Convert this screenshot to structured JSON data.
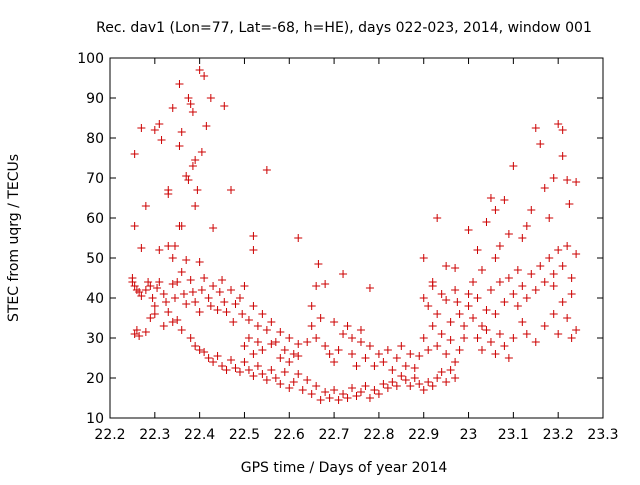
{
  "chart_data": {
    "type": "scatter",
    "title": "Rec. dav1 (Lon=77, Lat=-68, h=HE), days 022-023, 2014, window 001",
    "xlabel": "GPS time / Days of year 2014",
    "ylabel": "STEC from uqrg / TECUs",
    "xlim": [
      22.2,
      23.3
    ],
    "ylim": [
      10,
      100
    ],
    "x_ticks": [
      22.2,
      22.3,
      22.4,
      22.5,
      22.6,
      22.7,
      22.8,
      22.9,
      23,
      23.1,
      23.2,
      23.3
    ],
    "x_tick_labels": [
      "22.2",
      "22.3",
      "22.4",
      "22.5",
      "22.6",
      "22.7",
      "22.8",
      "22.9",
      "23",
      "23.1",
      "23.2",
      "23.3"
    ],
    "y_ticks": [
      10,
      20,
      30,
      40,
      50,
      60,
      70,
      80,
      90,
      100
    ],
    "y_tick_labels": [
      "10",
      "20",
      "30",
      "40",
      "50",
      "60",
      "70",
      "80",
      "90",
      "100"
    ],
    "grid": false,
    "marker": "plus",
    "color": "#cc0000",
    "series": [
      {
        "points": [
          [
            22.255,
            76
          ],
          [
            22.255,
            58
          ],
          [
            22.27,
            82.5
          ],
          [
            22.3,
            82
          ],
          [
            22.31,
            83.5
          ],
          [
            22.315,
            79.5
          ],
          [
            22.34,
            87.5
          ],
          [
            22.355,
            93.5
          ],
          [
            22.36,
            81.5
          ],
          [
            22.375,
            90
          ],
          [
            22.38,
            88.5
          ],
          [
            22.385,
            86.5
          ],
          [
            22.4,
            97
          ],
          [
            22.41,
            95.5
          ],
          [
            22.405,
            76.5
          ],
          [
            22.415,
            83
          ],
          [
            22.425,
            90
          ],
          [
            22.455,
            88
          ],
          [
            22.355,
            78
          ],
          [
            22.37,
            70.5
          ],
          [
            22.375,
            69.5
          ],
          [
            22.385,
            73
          ],
          [
            22.39,
            74.5
          ],
          [
            22.395,
            67
          ],
          [
            22.39,
            63
          ],
          [
            22.33,
            67
          ],
          [
            22.33,
            66
          ],
          [
            22.355,
            58
          ],
          [
            22.36,
            58
          ],
          [
            22.345,
            53
          ],
          [
            22.28,
            63
          ],
          [
            22.27,
            52.5
          ],
          [
            22.31,
            52
          ],
          [
            22.33,
            53
          ],
          [
            22.34,
            50
          ],
          [
            22.37,
            49.5
          ],
          [
            22.4,
            49
          ],
          [
            22.43,
            57.5
          ],
          [
            22.47,
            67
          ],
          [
            22.52,
            55.5
          ],
          [
            22.52,
            52
          ],
          [
            22.55,
            72
          ],
          [
            22.25,
            45
          ],
          [
            22.25,
            44
          ],
          [
            22.255,
            43
          ],
          [
            22.26,
            42
          ],
          [
            22.265,
            41.5
          ],
          [
            22.27,
            40.5
          ],
          [
            22.28,
            42
          ],
          [
            22.285,
            44
          ],
          [
            22.29,
            43
          ],
          [
            22.295,
            40
          ],
          [
            22.3,
            38
          ],
          [
            22.305,
            42.5
          ],
          [
            22.31,
            44
          ],
          [
            22.32,
            41
          ],
          [
            22.325,
            39
          ],
          [
            22.33,
            36.5
          ],
          [
            22.34,
            43.5
          ],
          [
            22.345,
            40
          ],
          [
            22.35,
            44
          ],
          [
            22.36,
            46.5
          ],
          [
            22.365,
            41
          ],
          [
            22.37,
            38.5
          ],
          [
            22.38,
            44.5
          ],
          [
            22.385,
            41.5
          ],
          [
            22.39,
            39
          ],
          [
            22.4,
            36.5
          ],
          [
            22.405,
            42
          ],
          [
            22.41,
            45
          ],
          [
            22.42,
            40
          ],
          [
            22.425,
            38
          ],
          [
            22.43,
            43
          ],
          [
            22.44,
            37
          ],
          [
            22.445,
            41.5
          ],
          [
            22.45,
            44.5
          ],
          [
            22.455,
            39
          ],
          [
            22.46,
            36.5
          ],
          [
            22.47,
            42
          ],
          [
            22.475,
            34
          ],
          [
            22.48,
            38.5
          ],
          [
            22.49,
            40
          ],
          [
            22.495,
            36
          ],
          [
            22.5,
            43
          ],
          [
            22.51,
            34.5
          ],
          [
            22.52,
            38
          ],
          [
            22.53,
            33
          ],
          [
            22.54,
            36
          ],
          [
            22.55,
            32
          ],
          [
            22.56,
            34
          ],
          [
            22.57,
            29
          ],
          [
            22.58,
            31.5
          ],
          [
            22.59,
            27
          ],
          [
            22.6,
            30
          ],
          [
            22.61,
            26
          ],
          [
            22.62,
            28.5
          ],
          [
            22.255,
            31
          ],
          [
            22.26,
            32
          ],
          [
            22.265,
            30.5
          ],
          [
            22.28,
            31.5
          ],
          [
            22.29,
            35
          ],
          [
            22.3,
            36
          ],
          [
            22.32,
            33
          ],
          [
            22.34,
            34
          ],
          [
            22.35,
            34.5
          ],
          [
            22.36,
            32
          ],
          [
            22.38,
            30
          ],
          [
            22.39,
            28
          ],
          [
            22.4,
            27
          ],
          [
            22.41,
            26.5
          ],
          [
            22.42,
            25
          ],
          [
            22.43,
            24
          ],
          [
            22.44,
            25.5
          ],
          [
            22.45,
            23
          ],
          [
            22.46,
            22
          ],
          [
            22.47,
            24.5
          ],
          [
            22.48,
            22.5
          ],
          [
            22.49,
            21.5
          ],
          [
            22.5,
            24
          ],
          [
            22.51,
            22
          ],
          [
            22.52,
            20.5
          ],
          [
            22.53,
            23
          ],
          [
            22.54,
            21
          ],
          [
            22.55,
            19.5
          ],
          [
            22.56,
            22
          ],
          [
            22.57,
            20
          ],
          [
            22.58,
            18.5
          ],
          [
            22.59,
            21.5
          ],
          [
            22.6,
            17.5
          ],
          [
            22.61,
            19
          ],
          [
            22.62,
            21
          ],
          [
            22.63,
            17
          ],
          [
            22.64,
            19.5
          ],
          [
            22.65,
            16
          ],
          [
            22.66,
            18
          ],
          [
            22.67,
            14.5
          ],
          [
            22.68,
            16.5
          ],
          [
            22.69,
            15
          ],
          [
            22.7,
            17
          ],
          [
            22.71,
            14.5
          ],
          [
            22.72,
            16
          ],
          [
            22.73,
            15
          ],
          [
            22.74,
            17.5
          ],
          [
            22.75,
            15.5
          ],
          [
            22.76,
            16.5
          ],
          [
            22.77,
            18
          ],
          [
            22.78,
            15
          ],
          [
            22.79,
            17
          ],
          [
            22.8,
            16
          ],
          [
            22.81,
            18.5
          ],
          [
            22.82,
            17.5
          ],
          [
            22.83,
            19
          ],
          [
            22.84,
            18
          ],
          [
            22.85,
            20.5
          ],
          [
            22.86,
            19.5
          ],
          [
            22.87,
            18
          ],
          [
            22.88,
            20
          ],
          [
            22.89,
            18.5
          ],
          [
            22.9,
            17
          ],
          [
            22.91,
            19
          ],
          [
            22.92,
            18
          ],
          [
            22.93,
            20
          ],
          [
            22.94,
            21.5
          ],
          [
            22.95,
            19
          ],
          [
            22.96,
            22
          ],
          [
            22.97,
            20
          ],
          [
            22.5,
            28
          ],
          [
            22.51,
            30
          ],
          [
            22.52,
            26
          ],
          [
            22.53,
            29
          ],
          [
            22.54,
            27
          ],
          [
            22.56,
            28.5
          ],
          [
            22.58,
            25
          ],
          [
            22.6,
            24
          ],
          [
            22.62,
            25.5
          ],
          [
            22.64,
            29
          ],
          [
            22.65,
            33
          ],
          [
            22.66,
            30
          ],
          [
            22.67,
            35
          ],
          [
            22.68,
            28
          ],
          [
            22.69,
            26
          ],
          [
            22.7,
            24
          ],
          [
            22.71,
            27
          ],
          [
            22.72,
            31
          ],
          [
            22.73,
            33
          ],
          [
            22.74,
            26
          ],
          [
            22.75,
            23
          ],
          [
            22.76,
            29
          ],
          [
            22.77,
            25
          ],
          [
            22.78,
            28
          ],
          [
            22.79,
            23
          ],
          [
            22.8,
            26
          ],
          [
            22.81,
            24
          ],
          [
            22.82,
            27
          ],
          [
            22.83,
            22
          ],
          [
            22.84,
            25
          ],
          [
            22.85,
            28
          ],
          [
            22.86,
            23
          ],
          [
            22.87,
            26
          ],
          [
            22.88,
            22.5
          ],
          [
            22.89,
            25.5
          ],
          [
            22.62,
            55
          ],
          [
            22.665,
            48.5
          ],
          [
            22.66,
            43
          ],
          [
            22.65,
            38
          ],
          [
            22.68,
            43.5
          ],
          [
            22.72,
            46
          ],
          [
            22.78,
            42.5
          ],
          [
            22.7,
            34
          ],
          [
            22.74,
            30
          ],
          [
            22.76,
            32
          ],
          [
            22.9,
            50
          ],
          [
            22.92,
            43
          ],
          [
            22.93,
            60
          ],
          [
            22.95,
            48
          ],
          [
            22.97,
            47.5
          ],
          [
            22.975,
            39
          ],
          [
            22.9,
            40
          ],
          [
            22.91,
            38
          ],
          [
            22.92,
            44
          ],
          [
            22.93,
            36
          ],
          [
            22.94,
            41
          ],
          [
            22.95,
            39.5
          ],
          [
            22.96,
            34
          ],
          [
            22.97,
            42
          ],
          [
            22.98,
            36
          ],
          [
            22.99,
            33
          ],
          [
            22.9,
            30
          ],
          [
            22.91,
            27
          ],
          [
            22.92,
            33
          ],
          [
            22.93,
            28
          ],
          [
            22.94,
            31
          ],
          [
            22.95,
            26
          ],
          [
            22.96,
            29.5
          ],
          [
            22.97,
            24
          ],
          [
            22.98,
            27
          ],
          [
            22.99,
            30
          ],
          [
            23.0,
            57
          ],
          [
            23.0,
            41
          ],
          [
            23.01,
            44
          ],
          [
            23.02,
            52
          ],
          [
            23.03,
            47
          ],
          [
            23.04,
            59
          ],
          [
            23.05,
            65
          ],
          [
            23.06,
            62
          ],
          [
            23.06,
            50
          ],
          [
            23.07,
            53
          ],
          [
            23.08,
            64.5
          ],
          [
            23.09,
            56
          ],
          [
            23.1,
            73
          ],
          [
            23.11,
            47
          ],
          [
            23.12,
            55
          ],
          [
            23.13,
            58
          ],
          [
            23.14,
            62
          ],
          [
            23.15,
            82.5
          ],
          [
            23.16,
            78.5
          ],
          [
            23.17,
            67.5
          ],
          [
            23.18,
            60
          ],
          [
            23.19,
            70
          ],
          [
            23.2,
            83.5
          ],
          [
            23.21,
            82
          ],
          [
            23.21,
            75.5
          ],
          [
            23.22,
            69.5
          ],
          [
            23.225,
            63.5
          ],
          [
            23.24,
            69
          ],
          [
            23.0,
            38
          ],
          [
            23.01,
            35
          ],
          [
            23.02,
            40
          ],
          [
            23.03,
            33
          ],
          [
            23.04,
            37
          ],
          [
            23.05,
            42
          ],
          [
            23.06,
            36
          ],
          [
            23.07,
            44
          ],
          [
            23.08,
            39
          ],
          [
            23.09,
            45
          ],
          [
            23.1,
            41
          ],
          [
            23.11,
            38
          ],
          [
            23.12,
            43
          ],
          [
            23.13,
            40
          ],
          [
            23.14,
            46
          ],
          [
            23.15,
            42
          ],
          [
            23.16,
            48
          ],
          [
            23.17,
            44
          ],
          [
            23.18,
            50
          ],
          [
            23.19,
            46
          ],
          [
            23.2,
            52
          ],
          [
            23.21,
            48
          ],
          [
            23.22,
            53
          ],
          [
            23.23,
            45
          ],
          [
            23.24,
            51
          ],
          [
            23.02,
            30
          ],
          [
            23.03,
            27
          ],
          [
            23.04,
            32
          ],
          [
            23.05,
            29
          ],
          [
            23.06,
            26
          ],
          [
            23.07,
            31
          ],
          [
            23.08,
            28
          ],
          [
            23.09,
            25
          ],
          [
            23.1,
            30
          ],
          [
            23.12,
            34
          ],
          [
            23.13,
            31
          ],
          [
            23.15,
            29
          ],
          [
            23.17,
            33
          ],
          [
            23.19,
            36
          ],
          [
            23.2,
            31
          ],
          [
            23.22,
            35
          ],
          [
            23.23,
            30
          ],
          [
            23.24,
            32
          ],
          [
            23.23,
            41
          ],
          [
            23.21,
            39
          ],
          [
            23.19,
            43
          ]
        ]
      }
    ]
  }
}
